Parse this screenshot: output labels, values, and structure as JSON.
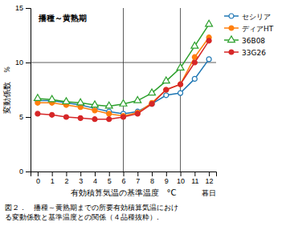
{
  "chart_data": {
    "type": "line",
    "x_label": "有効積算気温の基準温度　°C",
    "y_label": "変動係数　％",
    "annotations": [
      "播種～黄熟期",
      "暮日"
    ],
    "caption": [
      "図２．　播種～黄熟期までの所要有効積算気温におけ",
      "る変動係数と基準温度との関係（４品種抜粋）."
    ],
    "x": [
      0,
      1,
      2,
      3,
      4,
      5,
      6,
      7,
      8,
      9,
      10,
      11,
      12
    ],
    "series": [
      {
        "name": "セシリア",
        "marker": "circle-open",
        "values": [
          6.5,
          6.5,
          6.3,
          6.1,
          5.8,
          5.5,
          5.3,
          5.5,
          6.2,
          7.0,
          7.2,
          8.5,
          10.3
        ]
      },
      {
        "name": "ディアHT",
        "marker": "circle",
        "values": [
          6.3,
          6.3,
          6.1,
          5.9,
          5.6,
          5.3,
          5.1,
          5.4,
          6.3,
          7.5,
          8.0,
          10.5,
          12.3
        ]
      },
      {
        "name": "36B08",
        "marker": "triangle-open",
        "values": [
          6.7,
          6.6,
          6.4,
          6.3,
          6.1,
          6.0,
          6.2,
          6.5,
          7.2,
          8.3,
          9.5,
          11.5,
          13.5
        ]
      },
      {
        "name": "33G26",
        "marker": "circle",
        "values": [
          5.3,
          5.2,
          5.0,
          4.9,
          4.8,
          4.8,
          5.0,
          5.3,
          6.2,
          7.5,
          8.0,
          10.0,
          12.0
        ]
      }
    ],
    "vlines": [
      6,
      10
    ],
    "hline": 10,
    "xlim": [
      -0.5,
      12.5
    ],
    "xticks": [
      0,
      1,
      2,
      3,
      4,
      5,
      6,
      7,
      8,
      9,
      10,
      11,
      12
    ],
    "ylim": [
      0,
      15
    ],
    "yticks": [
      0,
      5,
      10,
      15
    ],
    "grid": false,
    "legend": "right"
  }
}
